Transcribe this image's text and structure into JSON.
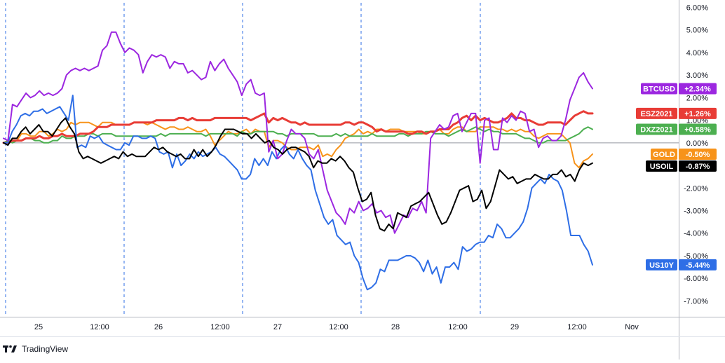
{
  "colors": {
    "BTCUSD": "#9c27e0",
    "ESZ2021": "#e83c36",
    "DXZ2021": "#4caf50",
    "GOLD": "#f7931a",
    "USOIL": "#000000",
    "US10Y": "#2e6ee6",
    "grid": "#2e6ee6",
    "axis": "#b2b5be",
    "zero": "#9598a1"
  },
  "footer": {
    "brand": "TradingView",
    "logo_icon": "tradingview-logo-icon"
  },
  "chart_data": {
    "type": "line",
    "title": "",
    "xlabel": "",
    "ylabel": "",
    "x_ticks": [
      "25",
      "12:00",
      "26",
      "12:00",
      "27",
      "12:00",
      "28",
      "12:00",
      "29",
      "12:00",
      "Nov"
    ],
    "y_ticks": [
      "6.00%",
      "5.00%",
      "4.00%",
      "3.00%",
      "2.00%",
      "1.00%",
      "0.00%",
      "-1.00%",
      "-2.00%",
      "-3.00%",
      "-4.00%",
      "-5.00%",
      "-6.00%",
      "-7.00%"
    ],
    "ylim": [
      -7.7,
      6.2
    ],
    "y_unit": "%",
    "session_breaks": true,
    "grid": false,
    "series": [
      {
        "name": "BTCUSD",
        "label": "+2.34%",
        "values": [
          0.2,
          0.1,
          1.7,
          1.6,
          1.9,
          2.2,
          2.0,
          2.1,
          2.3,
          2.1,
          2.2,
          2.1,
          2.2,
          2.4,
          3.0,
          3.2,
          3.3,
          3.2,
          3.3,
          3.2,
          3.3,
          3.4,
          4.1,
          4.3,
          4.9,
          4.9,
          4.4,
          4.0,
          4.2,
          4.1,
          3.9,
          3.1,
          3.6,
          3.9,
          3.8,
          3.9,
          3.8,
          3.3,
          3.6,
          3.5,
          3.5,
          3.1,
          3.2,
          3.0,
          2.8,
          2.9,
          3.6,
          3.2,
          3.5,
          3.7,
          3.3,
          3.0,
          2.7,
          2.1,
          2.6,
          2.8,
          2.2,
          2.1,
          2.2,
          -0.4,
          0.1,
          -0.7,
          -0.5,
          0.1,
          0.6,
          0.4,
          0.4,
          0.2,
          -0.5,
          -0.7,
          -0.3,
          -1.2,
          -2.1,
          -2.6,
          -3.1,
          -3.3,
          -3.6,
          -2.9,
          -3.1,
          -2.6,
          -3.0,
          -2.9,
          -2.7,
          -3.1,
          -3.0,
          -3.3,
          -3.2,
          -4.0,
          -3.6,
          -3.2,
          -3.3,
          -2.9,
          -3.0,
          -2.6,
          -3.1,
          0.2,
          0.5,
          0.8,
          0.6,
          0.7,
          1.2,
          1.3,
          0.5,
          0.9,
          1.3,
          1.3,
          -0.9,
          1.0,
          1.1,
          -0.3,
          -0.3,
          1.1,
          0.9,
          1.2,
          1.0,
          1.4,
          1.3,
          0.5,
          0.6,
          -0.2,
          0.2,
          0.3,
          0.1,
          0.1,
          0.3,
          1.0,
          1.9,
          2.4,
          2.9,
          3.1,
          2.7,
          2.4
        ]
      },
      {
        "name": "ESZ2021",
        "label": "+1.26%",
        "values": [
          0.0,
          0.0,
          0.1,
          0.1,
          0.1,
          0.2,
          0.2,
          0.2,
          0.3,
          0.2,
          0.2,
          0.3,
          0.3,
          0.4,
          0.3,
          0.3,
          0.3,
          0.4,
          0.4,
          0.4,
          0.5,
          0.7,
          0.7,
          0.7,
          0.8,
          0.8,
          0.8,
          0.8,
          0.8,
          0.9,
          0.9,
          0.9,
          0.9,
          0.9,
          1.0,
          1.0,
          1.0,
          1.0,
          1.0,
          1.1,
          1.1,
          1.0,
          1.1,
          1.0,
          1.0,
          1.0,
          1.0,
          1.1,
          1.1,
          1.1,
          1.1,
          1.1,
          1.1,
          1.1,
          1.1,
          1.0,
          1.1,
          1.2,
          1.3,
          0.9,
          1.1,
          1.0,
          1.1,
          1.0,
          0.9,
          0.9,
          0.8,
          0.9,
          0.8,
          0.8,
          0.8,
          0.8,
          0.8,
          0.8,
          0.8,
          0.8,
          0.9,
          0.9,
          0.8,
          0.9,
          0.9,
          0.8,
          0.7,
          0.5,
          0.6,
          0.5,
          0.5,
          0.5,
          0.5,
          0.5,
          0.4,
          0.4,
          0.5,
          0.5,
          0.4,
          0.5,
          0.5,
          0.6,
          0.6,
          0.6,
          0.8,
          0.9,
          1.1,
          1.2,
          1.0,
          1.2,
          1.0,
          1.1,
          1.0,
          0.9,
          0.9,
          1.0,
          1.1,
          1.3,
          1.1,
          1.1,
          1.0,
          1.0,
          0.9,
          0.8,
          0.8,
          0.9,
          0.9,
          0.9,
          0.9,
          0.8,
          1.0,
          1.2,
          1.3,
          1.4,
          1.3,
          1.3
        ]
      },
      {
        "name": "DXZ2021",
        "label": "+0.58%",
        "values": [
          0.0,
          0.1,
          0.0,
          0.1,
          0.1,
          0.2,
          0.2,
          0.1,
          0.1,
          0.0,
          0.0,
          0.1,
          0.1,
          0.3,
          0.2,
          0.2,
          0.3,
          0.3,
          0.3,
          0.4,
          0.4,
          0.3,
          0.4,
          0.4,
          0.4,
          0.3,
          0.3,
          0.3,
          0.3,
          0.3,
          0.3,
          0.3,
          0.3,
          0.3,
          0.3,
          0.4,
          0.3,
          0.4,
          0.4,
          0.4,
          0.4,
          0.4,
          0.4,
          0.4,
          0.4,
          0.3,
          0.4,
          0.4,
          0.4,
          0.4,
          0.4,
          0.4,
          0.3,
          0.5,
          0.4,
          0.4,
          0.5,
          0.5,
          0.5,
          0.5,
          0.5,
          0.4,
          0.4,
          0.3,
          0.4,
          0.4,
          0.4,
          0.4,
          0.4,
          0.4,
          0.3,
          0.3,
          0.3,
          0.3,
          0.4,
          0.3,
          0.4,
          0.3,
          0.3,
          0.3,
          0.3,
          0.3,
          0.4,
          0.3,
          0.3,
          0.3,
          0.3,
          0.3,
          0.4,
          0.4,
          0.3,
          0.4,
          0.4,
          0.4,
          0.5,
          0.5,
          0.4,
          0.4,
          0.4,
          0.3,
          0.4,
          0.5,
          0.6,
          0.5,
          0.6,
          0.7,
          0.6,
          0.5,
          0.6,
          0.5,
          0.5,
          0.4,
          0.4,
          0.4,
          0.4,
          0.3,
          0.2,
          0.2,
          0.1,
          0.0,
          0.0,
          0.1,
          0.1,
          0.1,
          0.1,
          0.1,
          0.2,
          0.3,
          0.4,
          0.6,
          0.7,
          0.6
        ]
      },
      {
        "name": "GOLD",
        "label": "-0.50%",
        "values": [
          0.0,
          0.1,
          0.1,
          0.1,
          0.4,
          0.4,
          0.3,
          0.3,
          0.5,
          0.5,
          0.3,
          0.4,
          0.6,
          0.5,
          0.6,
          0.9,
          0.8,
          0.9,
          0.9,
          0.9,
          0.8,
          0.7,
          0.9,
          0.9,
          0.9,
          0.8,
          0.8,
          0.8,
          0.8,
          0.9,
          0.9,
          0.9,
          0.8,
          0.9,
          0.8,
          0.7,
          0.6,
          0.7,
          0.7,
          0.6,
          0.6,
          0.7,
          0.6,
          0.5,
          0.5,
          0.6,
          0.3,
          -0.1,
          0.1,
          0.3,
          0.5,
          0.4,
          0.4,
          0.5,
          0.6,
          0.4,
          0.6,
          0.5,
          0.5,
          -0.2,
          0.1,
          0.1,
          0.0,
          -0.2,
          -0.3,
          -0.3,
          -0.2,
          -0.2,
          -0.2,
          -0.3,
          -0.1,
          -0.6,
          -0.5,
          -0.6,
          -0.3,
          -0.1,
          0.2,
          0.3,
          0.4,
          0.6,
          0.4,
          0.5,
          0.4,
          0.6,
          0.6,
          0.5,
          0.6,
          0.6,
          0.6,
          0.5,
          0.5,
          0.5,
          0.5,
          0.4,
          0.4,
          0.5,
          0.5,
          0.6,
          0.4,
          0.4,
          0.6,
          0.7,
          0.7,
          0.5,
          0.5,
          0.5,
          0.7,
          0.7,
          0.7,
          0.7,
          0.6,
          0.6,
          0.5,
          0.6,
          0.5,
          0.6,
          0.5,
          0.5,
          0.3,
          0.2,
          0.3,
          0.4,
          0.4,
          0.4,
          0.4,
          0.2,
          0.0,
          -0.9,
          -1.1,
          -0.8,
          -0.7,
          -0.5
        ]
      },
      {
        "name": "USOIL",
        "label": "-0.87%",
        "values": [
          0.0,
          -0.1,
          0.2,
          0.2,
          0.5,
          0.7,
          0.4,
          0.6,
          0.8,
          0.5,
          0.5,
          0.3,
          0.6,
          0.9,
          1.1,
          0.7,
          0.4,
          -0.4,
          -0.7,
          -0.6,
          -0.7,
          -0.8,
          -0.9,
          -0.8,
          -0.7,
          -0.6,
          -0.7,
          -0.4,
          -0.6,
          -0.5,
          -0.6,
          -0.6,
          -0.6,
          -0.4,
          -0.2,
          -0.3,
          -0.2,
          -0.4,
          -0.5,
          -0.6,
          -0.5,
          -0.7,
          -0.7,
          -0.3,
          -0.6,
          -0.3,
          -0.6,
          -0.4,
          -0.1,
          0.3,
          0.6,
          0.6,
          0.6,
          0.5,
          0.4,
          0.4,
          0.2,
          0.4,
          0.2,
          0.0,
          0.1,
          -0.2,
          -0.3,
          -0.5,
          -0.3,
          -0.2,
          -0.2,
          -0.3,
          -0.4,
          -0.6,
          -1.1,
          -0.8,
          -0.9,
          -0.9,
          -0.7,
          -0.8,
          -0.6,
          -0.8,
          -1.1,
          -1.3,
          -2.0,
          -2.6,
          -2.5,
          -2.2,
          -3.2,
          -3.8,
          -3.9,
          -3.6,
          -3.8,
          -3.1,
          -3.2,
          -3.3,
          -2.8,
          -2.7,
          -2.6,
          -2.4,
          -2.2,
          -2.7,
          -3.2,
          -3.6,
          -3.5,
          -3.1,
          -2.6,
          -2.1,
          -2.0,
          -1.9,
          -2.6,
          -2.5,
          -2.1,
          -2.9,
          -2.6,
          -1.9,
          -1.2,
          -1.4,
          -1.6,
          -1.5,
          -1.8,
          -1.7,
          -1.6,
          -1.6,
          -1.4,
          -1.5,
          -1.6,
          -1.6,
          -1.4,
          -1.4,
          -1.2,
          -1.5,
          -1.4,
          -1.7,
          -1.2,
          -0.9,
          -1.0,
          -0.9
        ]
      },
      {
        "name": "US10Y",
        "label": "-5.44%",
        "values": [
          0.0,
          0.0,
          0.5,
          0.8,
          1.2,
          1.3,
          1.2,
          1.4,
          1.4,
          1.5,
          1.3,
          1.4,
          1.5,
          1.6,
          1.3,
          1.0,
          2.1,
          -0.2,
          -0.1,
          -0.2,
          0.3,
          0.2,
          0.3,
          0.0,
          -0.1,
          -0.2,
          -0.3,
          -0.3,
          0.0,
          -0.1,
          0.3,
          0.3,
          0.2,
          0.2,
          0.3,
          0.2,
          -0.4,
          -0.5,
          -0.4,
          -1.1,
          -0.5,
          -1.0,
          -0.8,
          -0.5,
          -0.7,
          -0.4,
          -0.6,
          -0.5,
          -0.4,
          -0.2,
          -0.5,
          -0.6,
          -0.8,
          -1.0,
          -1.2,
          -1.6,
          -1.6,
          -1.4,
          -0.7,
          -1.0,
          -0.7,
          -1.0,
          -0.4,
          -0.7,
          -0.3,
          -0.1,
          -0.5,
          -0.7,
          -0.3,
          -0.7,
          -1.0,
          -1.2,
          -2.1,
          -2.7,
          -3.3,
          -3.6,
          -3.4,
          -4.1,
          -4.3,
          -4.5,
          -4.4,
          -5.0,
          -5.3,
          -6.0,
          -6.5,
          -6.4,
          -6.2,
          -5.6,
          -5.7,
          -5.2,
          -5.2,
          -5.2,
          -5.1,
          -5.0,
          -5.0,
          -5.1,
          -5.3,
          -5.7,
          -5.2,
          -5.8,
          -5.5,
          -6.2,
          -5.5,
          -5.5,
          -5.3,
          -5.6,
          -4.6,
          -4.8,
          -4.7,
          -4.5,
          -4.4,
          -4.4,
          -4.1,
          -4.2,
          -3.6,
          -3.8,
          -4.2,
          -4.2,
          -4.0,
          -3.8,
          -3.5,
          -2.9,
          -2.0,
          -1.8,
          -1.6,
          -1.8,
          -1.4,
          -1.6,
          -1.7,
          -2.1,
          -3.0,
          -4.1,
          -4.1,
          -4.1,
          -4.5,
          -4.8,
          -5.4
        ]
      }
    ]
  }
}
